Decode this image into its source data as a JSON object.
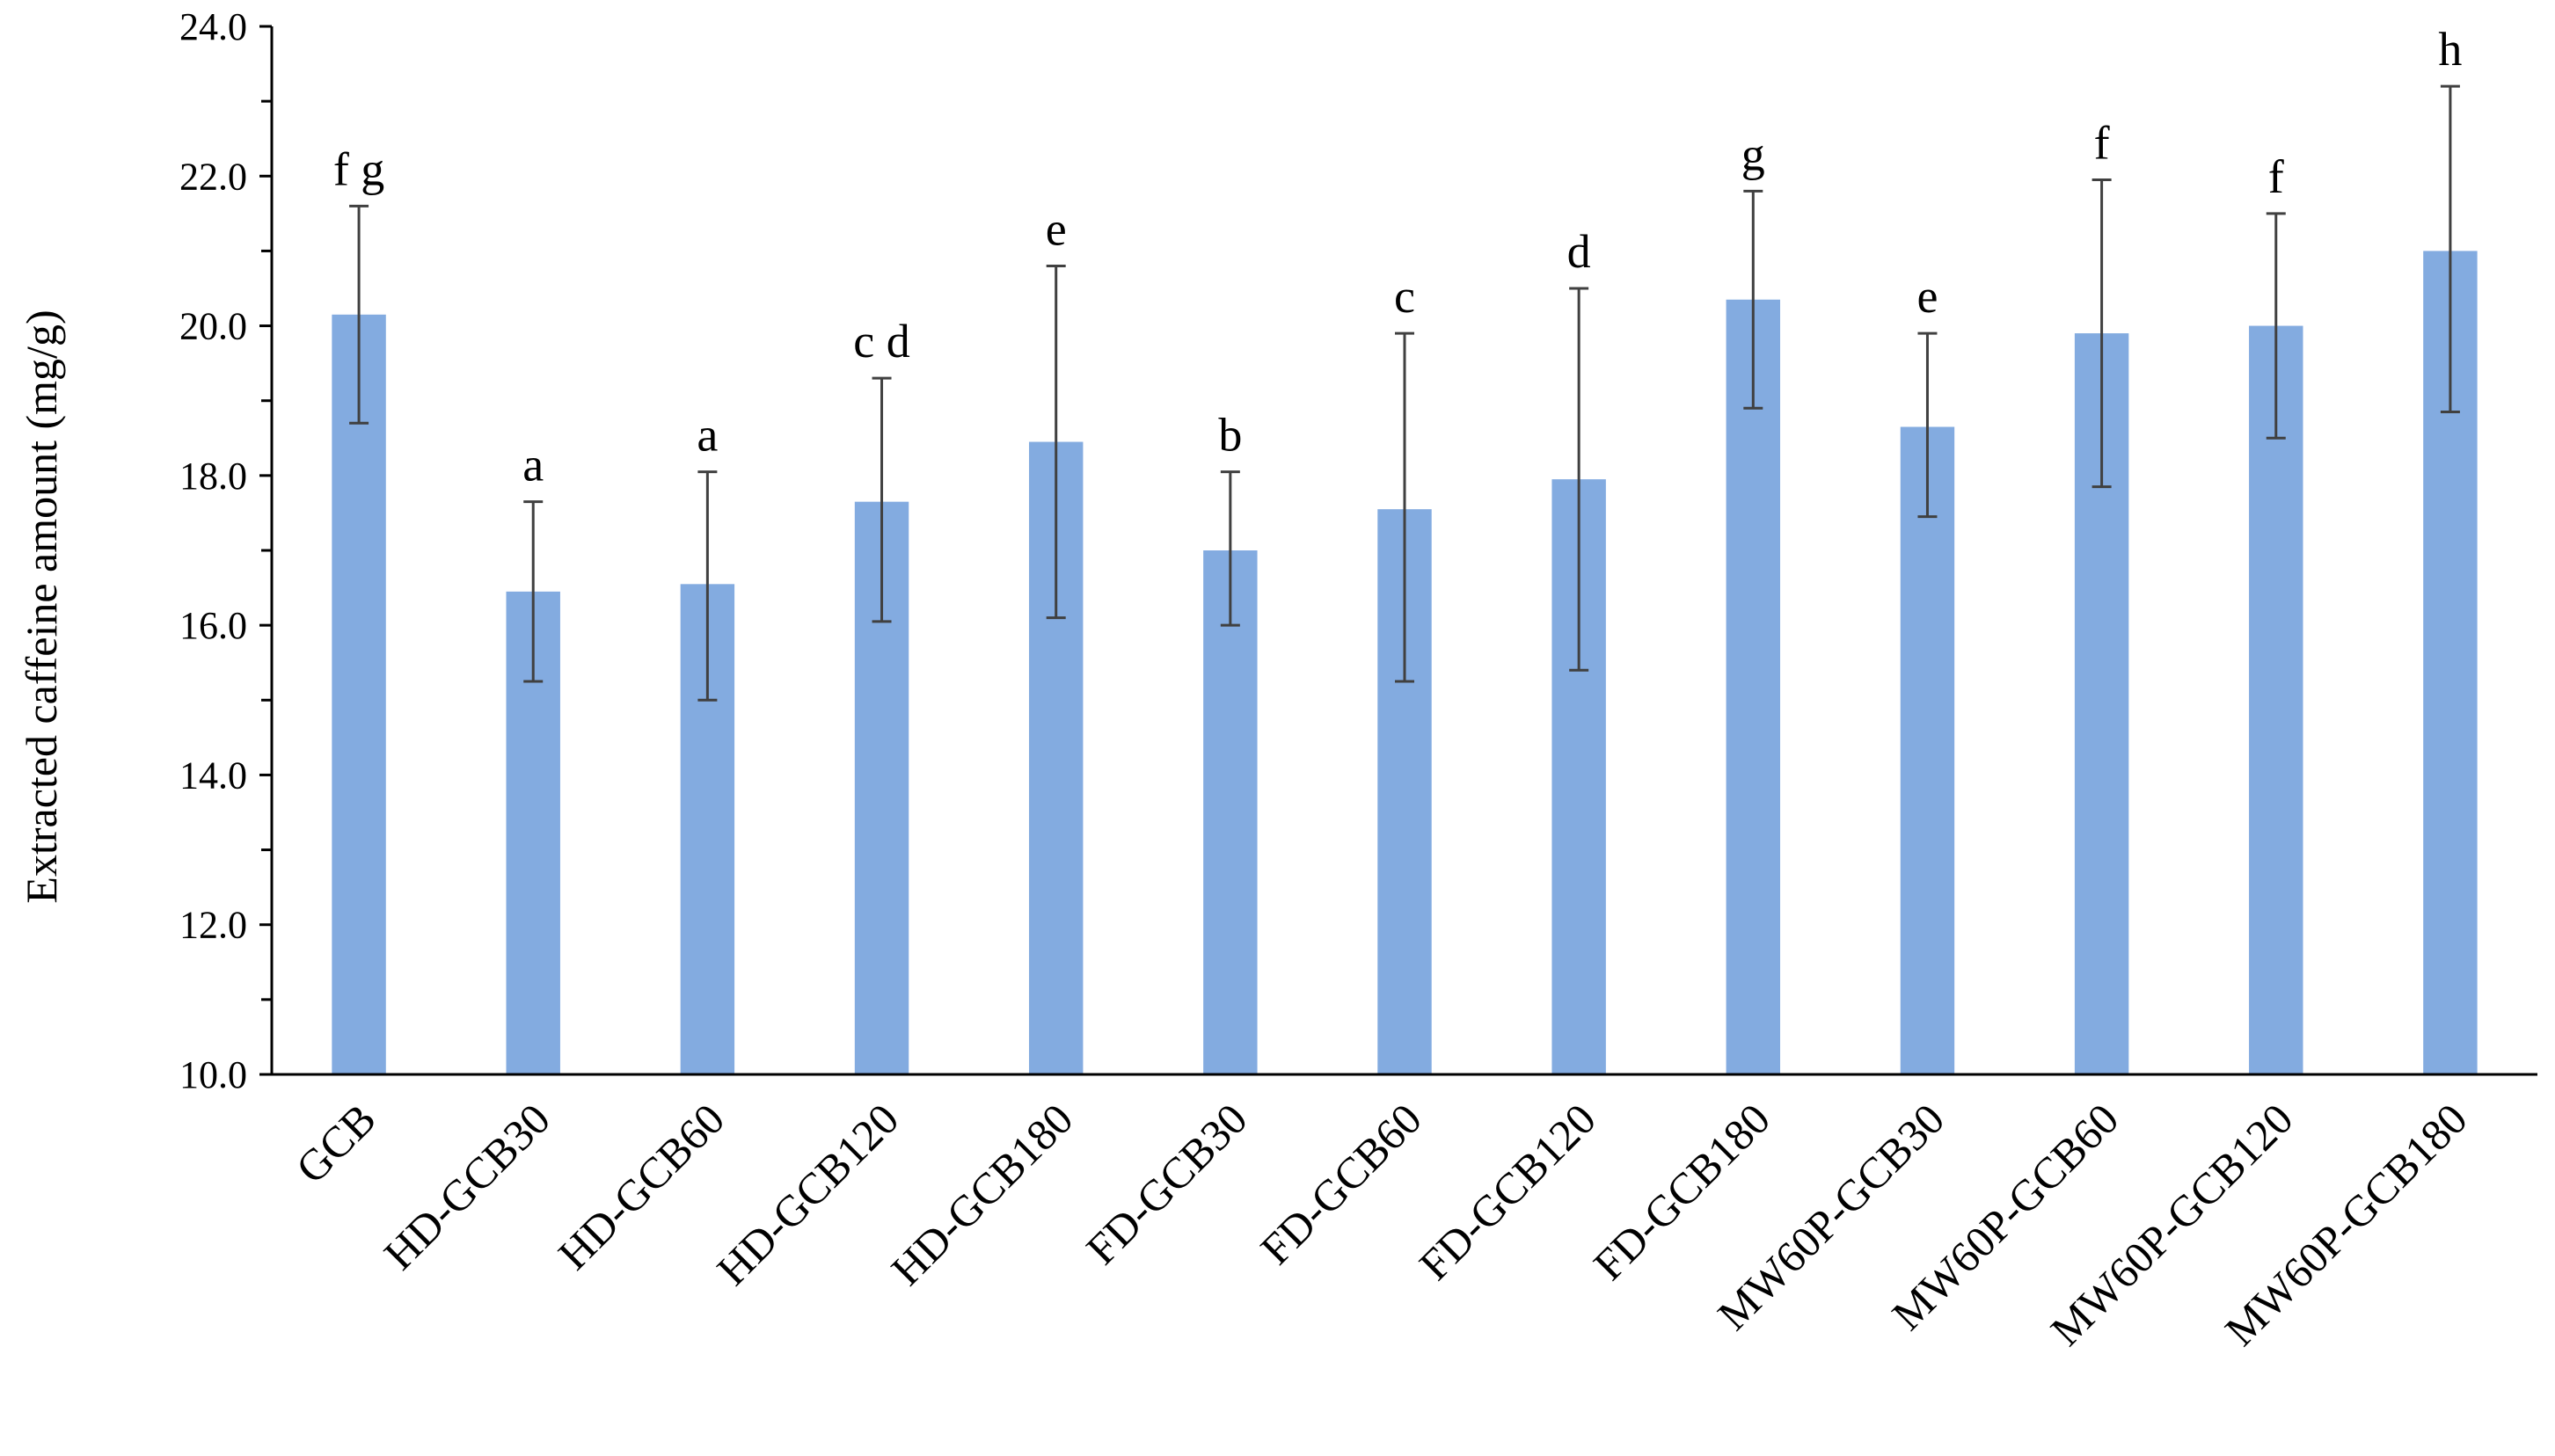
{
  "chart_data": {
    "type": "bar",
    "ylabel": "Extracted caffeine amount (mg/g)",
    "xlabel": "",
    "ylim": [
      10.0,
      24.0
    ],
    "ytick_values": [
      10,
      12,
      14,
      16,
      18,
      20,
      22,
      24
    ],
    "ytick_labels": [
      "10.0",
      "12.0",
      "14.0",
      "16.0",
      "18.0",
      "20.0",
      "22.0",
      "24.0"
    ],
    "grid": false,
    "legend": "none",
    "bar_color": "#83abe0",
    "errorbar_color": "#404040",
    "categories": [
      "GCB",
      "HD-GCB30",
      "HD-GCB60",
      "HD-GCB120",
      "HD-GCB180",
      "FD-GCB30",
      "FD-GCB60",
      "FD-GCB120",
      "FD-GCB180",
      "MW60P-GCB30",
      "MW60P-GCB60",
      "MW60P-GCB120",
      "MW60P-GCB180"
    ],
    "values": [
      20.15,
      16.45,
      16.55,
      17.65,
      18.45,
      17.0,
      17.55,
      17.95,
      20.35,
      18.65,
      19.9,
      20.0,
      21.0
    ],
    "error_low": [
      18.7,
      15.25,
      15.0,
      16.05,
      16.1,
      16.0,
      15.25,
      15.4,
      18.9,
      17.45,
      17.85,
      18.5,
      18.85
    ],
    "error_high": [
      21.6,
      17.65,
      18.05,
      19.3,
      20.8,
      18.05,
      19.9,
      20.5,
      21.8,
      19.9,
      21.95,
      21.5,
      23.2
    ],
    "significance_labels": [
      "f g",
      "a",
      "a",
      "c d",
      "e",
      "b",
      "c",
      "d",
      "g",
      "e",
      "f",
      "f",
      "h"
    ]
  }
}
